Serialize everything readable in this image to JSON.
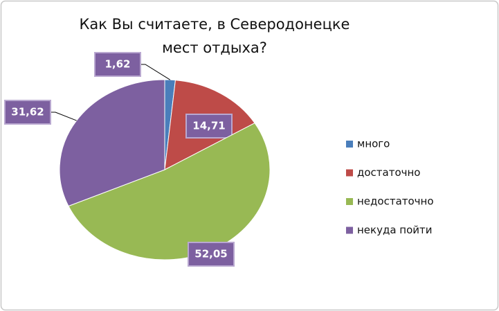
{
  "chart_data": {
    "type": "pie",
    "title": "Как Вы считаете, в Северодонецке мест отдыха?",
    "categories": [
      "много",
      "достаточно",
      "недостаточно",
      "некуда пойти"
    ],
    "values": [
      1.62,
      14.71,
      52.05,
      31.62
    ],
    "value_labels": [
      "1,62",
      "14,71",
      "52,05",
      "31,62"
    ],
    "colors": [
      "#4a7ebb",
      "#be4b48",
      "#98b954",
      "#7d60a0"
    ],
    "legend": "right"
  }
}
